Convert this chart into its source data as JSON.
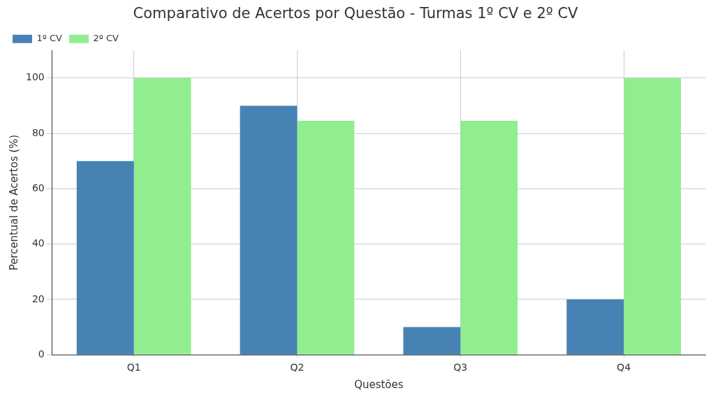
{
  "chart_data": {
    "type": "bar",
    "title": "Comparativo de Acertos por Questão - Turmas 1º CV e 2º CV",
    "xlabel": "Questões",
    "ylabel": "Percentual de Acertos (%)",
    "categories": [
      "Q1",
      "Q2",
      "Q3",
      "Q4"
    ],
    "series": [
      {
        "name": "1º CV",
        "color": "#4682b4",
        "values": [
          70,
          90,
          10,
          20
        ]
      },
      {
        "name": "2º CV",
        "color": "#90ee90",
        "values": [
          100,
          84.6,
          84.6,
          100
        ]
      }
    ],
    "ylim": [
      0,
      110
    ],
    "yticks": [
      0,
      20,
      40,
      60,
      80,
      100
    ],
    "grid": true,
    "legend": "top left"
  }
}
